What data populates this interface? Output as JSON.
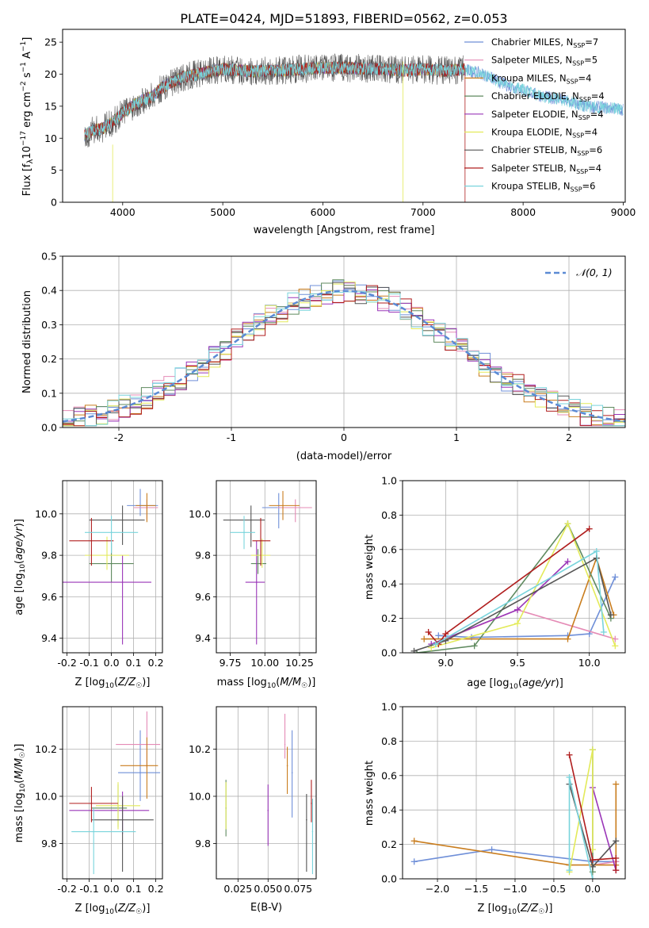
{
  "figure": {
    "title": "PLATE=0424, MJD=51893, FIBERID=0562, z=0.053"
  },
  "colors": {
    "Chabrier MILES": "#6f8fd8",
    "Salpeter MILES": "#e58bb6",
    "Kroupa MILES": "#c97d1e",
    "Chabrier ELODIE": "#5f8a5f",
    "Salpeter ELODIE": "#9a36b8",
    "Kroupa ELODIE": "#e3ea5a",
    "Chabrier STELIB": "#555555",
    "Salpeter STELIB": "#b01e1e",
    "Kroupa STELIB": "#79d4dc"
  },
  "chart_data": [
    {
      "id": "spectrum",
      "type": "line",
      "xlabel": "wavelength [Angstrom, rest frame]",
      "ylabel": "Flux [f_λ 10^-17 erg cm^-2 s^-1 A^-1]",
      "xlim": [
        3400,
        9020
      ],
      "ylim": [
        0,
        27
      ],
      "xticks": [
        4000,
        5000,
        6000,
        7000,
        8000,
        9000
      ],
      "yticks": [
        0,
        5,
        10,
        15,
        20,
        25
      ],
      "grid": false,
      "legend_position": "right",
      "legend": [
        {
          "label": "Chabrier MILES",
          "nssp": "7"
        },
        {
          "label": "Salpeter MILES",
          "nssp": "5"
        },
        {
          "label": "Kroupa MILES",
          "nssp": "4"
        },
        {
          "label": "Chabrier ELODIE",
          "nssp": "4"
        },
        {
          "label": "Salpeter ELODIE",
          "nssp": "4"
        },
        {
          "label": "Kroupa ELODIE",
          "nssp": "4"
        },
        {
          "label": "Chabrier STELIB",
          "nssp": "6"
        },
        {
          "label": "Salpeter STELIB",
          "nssp": "4"
        },
        {
          "label": "Kroupa STELIB",
          "nssp": "6"
        }
      ],
      "continuum": {
        "wavelength": [
          3620,
          3700,
          3800,
          3900,
          4000,
          4100,
          4200,
          4300,
          4400,
          4500,
          4600,
          4800,
          5000,
          5200,
          5400,
          5600,
          5800,
          6000,
          6200,
          6400,
          6600,
          6800,
          7000,
          7200,
          7400,
          7600,
          7800,
          8000,
          8200,
          8400,
          8600,
          8800,
          9000
        ],
        "flux": [
          10.5,
          11.2,
          11.5,
          12.5,
          14.0,
          15.0,
          16.0,
          16.5,
          18.0,
          18.8,
          19.5,
          20.2,
          20.8,
          20.5,
          20.5,
          20.6,
          20.8,
          21.0,
          21.0,
          20.9,
          20.8,
          20.6,
          20.8,
          20.5,
          20.8,
          20.0,
          18.5,
          17.5,
          16.5,
          16.0,
          15.0,
          14.8,
          14.5
        ]
      }
    },
    {
      "id": "residuals",
      "type": "bar",
      "xlabel": "(data-model)/error",
      "ylabel": "Normed distribution",
      "xlim": [
        -2.5,
        2.5
      ],
      "ylim": [
        0,
        0.5
      ],
      "xticks": [
        -2,
        -1,
        0,
        1,
        2
      ],
      "yticks": [
        0.0,
        0.1,
        0.2,
        0.3,
        0.4,
        0.5
      ],
      "grid": true,
      "legend_position": "upper right",
      "legend_label": "𝒩(0, 1)",
      "bin_width": 0.1
    },
    {
      "id": "age_vs_Z",
      "type": "scatter",
      "xlabel": "Z [log10(Z/Z☉)]",
      "ylabel": "age [log10(age/yr)]",
      "xlim": [
        -0.22,
        0.23
      ],
      "ylim": [
        9.33,
        10.16
      ],
      "xticks": [
        -0.2,
        -0.1,
        0.0,
        0.1,
        0.2
      ],
      "yticks": [
        9.4,
        9.6,
        9.8,
        10.0
      ],
      "grid": true,
      "points": [
        {
          "series": "Chabrier MILES",
          "x": 0.13,
          "xerr": [
            0.06,
            0.08
          ],
          "y": 10.04,
          "yerr": [
            0.05,
            0.08
          ]
        },
        {
          "series": "Salpeter MILES",
          "x": 0.16,
          "xerr": [
            0.06,
            0.05
          ],
          "y": 10.03,
          "yerr": [
            0.06,
            0.04
          ]
        },
        {
          "series": "Kroupa MILES",
          "x": 0.16,
          "xerr": [
            0.05,
            0.04
          ],
          "y": 10.04,
          "yerr": [
            0.08,
            0.06
          ]
        },
        {
          "series": "Chabrier ELODIE",
          "x": 0.0,
          "xerr": [
            0.1,
            0.1
          ],
          "y": 9.76,
          "yerr": [
            0.09,
            0.1
          ]
        },
        {
          "series": "Salpeter ELODIE",
          "x": 0.05,
          "xerr": [
            0.27,
            0.13
          ],
          "y": 9.67,
          "yerr": [
            0.3,
            0.13
          ]
        },
        {
          "series": "Kroupa ELODIE",
          "x": -0.02,
          "xerr": [
            0.1,
            0.1
          ],
          "y": 9.8,
          "yerr": [
            0.07,
            0.09
          ]
        },
        {
          "series": "Chabrier STELIB",
          "x": 0.05,
          "xerr": [
            0.15,
            0.1
          ],
          "y": 9.97,
          "yerr": [
            0.12,
            0.07
          ]
        },
        {
          "series": "Salpeter STELIB",
          "x": -0.09,
          "xerr": [
            0.1,
            0.1
          ],
          "y": 9.87,
          "yerr": [
            0.12,
            0.11
          ]
        },
        {
          "series": "Kroupa STELIB",
          "x": 0.0,
          "xerr": [
            0.12,
            0.12
          ],
          "y": 9.91,
          "yerr": [
            0.1,
            0.08
          ]
        }
      ]
    },
    {
      "id": "age_vs_mass",
      "type": "scatter",
      "xlabel": "mass [log10(M/M☉)]",
      "ylabel": "",
      "xlim": [
        9.65,
        10.37
      ],
      "ylim": [
        9.33,
        10.16
      ],
      "xticks": [
        9.75,
        10.0,
        10.25
      ],
      "yticks": [
        9.4,
        9.6,
        9.8,
        10.0
      ],
      "grid": true,
      "points": [
        {
          "series": "Chabrier MILES",
          "x": 10.1,
          "xerr": [
            0.12,
            0.12
          ],
          "y": 10.03,
          "yerr": [
            0.1,
            0.07
          ]
        },
        {
          "series": "Salpeter MILES",
          "x": 10.22,
          "xerr": [
            0.13,
            0.12
          ],
          "y": 10.03,
          "yerr": [
            0.07,
            0.04
          ]
        },
        {
          "series": "Kroupa MILES",
          "x": 10.13,
          "xerr": [
            0.1,
            0.12
          ],
          "y": 10.04,
          "yerr": [
            0.07,
            0.07
          ]
        },
        {
          "series": "Chabrier ELODIE",
          "x": 9.95,
          "xerr": [
            0.05,
            0.06
          ],
          "y": 9.76,
          "yerr": [
            0.05,
            0.07
          ]
        },
        {
          "series": "Salpeter ELODIE",
          "x": 9.94,
          "xerr": [
            0.08,
            0.06
          ],
          "y": 9.67,
          "yerr": [
            0.3,
            0.2
          ]
        },
        {
          "series": "Kroupa ELODIE",
          "x": 9.98,
          "xerr": [
            0.08,
            0.06
          ],
          "y": 9.8,
          "yerr": [
            0.06,
            0.08
          ]
        },
        {
          "series": "Chabrier STELIB",
          "x": 9.9,
          "xerr": [
            0.2,
            0.1
          ],
          "y": 9.97,
          "yerr": [
            0.13,
            0.07
          ]
        },
        {
          "series": "Salpeter STELIB",
          "x": 9.97,
          "xerr": [
            0.06,
            0.07
          ],
          "y": 9.87,
          "yerr": [
            0.12,
            0.11
          ]
        },
        {
          "series": "Kroupa STELIB",
          "x": 9.85,
          "xerr": [
            0.1,
            0.08
          ],
          "y": 9.91,
          "yerr": [
            0.08,
            0.08
          ]
        }
      ]
    },
    {
      "id": "mass_weight_vs_age",
      "type": "line",
      "xlabel": "age [log10(age/yr)]",
      "ylabel": "mass weight",
      "xlim": [
        8.7,
        10.25
      ],
      "ylim": [
        0,
        1.0
      ],
      "xticks": [
        9.0,
        9.5,
        10.0
      ],
      "yticks": [
        0.0,
        0.2,
        0.4,
        0.6,
        0.8,
        1.0
      ],
      "grid": true,
      "series": [
        {
          "name": "Chabrier MILES",
          "x": [
            8.95,
            9.18,
            9.85,
            10.0,
            10.18
          ],
          "y": [
            0.1,
            0.09,
            0.1,
            0.11,
            0.44
          ]
        },
        {
          "name": "Salpeter MILES",
          "x": [
            9.0,
            9.5,
            10.18
          ],
          "y": [
            0.08,
            0.25,
            0.08
          ]
        },
        {
          "name": "Kroupa MILES",
          "x": [
            8.85,
            9.85,
            10.05,
            10.17
          ],
          "y": [
            0.08,
            0.08,
            0.55,
            0.22
          ]
        },
        {
          "name": "Chabrier ELODIE",
          "x": [
            8.8,
            9.2,
            9.85,
            10.15
          ],
          "y": [
            0.0,
            0.04,
            0.75,
            0.2
          ]
        },
        {
          "name": "Salpeter ELODIE",
          "x": [
            8.9,
            9.5,
            9.85
          ],
          "y": [
            0.05,
            0.25,
            0.53
          ]
        },
        {
          "name": "Kroupa ELODIE",
          "x": [
            8.9,
            9.5,
            9.85,
            10.18
          ],
          "y": [
            0.03,
            0.17,
            0.75,
            0.04
          ]
        },
        {
          "name": "Chabrier STELIB",
          "x": [
            8.78,
            9.0,
            10.05,
            10.15
          ],
          "y": [
            0.01,
            0.07,
            0.55,
            0.22
          ]
        },
        {
          "name": "Salpeter STELIB",
          "x": [
            8.88,
            8.95,
            9.0,
            10.0
          ],
          "y": [
            0.12,
            0.05,
            0.11,
            0.72
          ]
        },
        {
          "name": "Kroupa STELIB",
          "x": [
            8.93,
            10.05,
            10.1
          ],
          "y": [
            0.05,
            0.59,
            0.12
          ]
        }
      ]
    },
    {
      "id": "mass_vs_Z",
      "type": "scatter",
      "xlabel": "Z [log10(Z/Z☉)]",
      "ylabel": "mass [log10(M/M☉)]",
      "xlim": [
        -0.22,
        0.23
      ],
      "ylim": [
        9.65,
        10.38
      ],
      "xticks": [
        -0.2,
        -0.1,
        0.0,
        0.1,
        0.2
      ],
      "yticks": [
        9.8,
        10.0,
        10.2
      ],
      "grid": true,
      "points": [
        {
          "series": "Chabrier MILES",
          "x": 0.13,
          "xerr": [
            0.1,
            0.09
          ],
          "y": 10.1,
          "yerr": [
            0.12,
            0.18
          ]
        },
        {
          "series": "Salpeter MILES",
          "x": 0.16,
          "xerr": [
            0.14,
            0.06
          ],
          "y": 10.22,
          "yerr": [
            0.1,
            0.14
          ]
        },
        {
          "series": "Kroupa MILES",
          "x": 0.16,
          "xerr": [
            0.12,
            0.05
          ],
          "y": 10.13,
          "yerr": [
            0.14,
            0.12
          ]
        },
        {
          "series": "Chabrier ELODIE",
          "x": 0.03,
          "xerr": [
            0.12,
            0.04
          ],
          "y": 9.95,
          "yerr": [
            0.08,
            0.1
          ]
        },
        {
          "series": "Salpeter ELODIE",
          "x": 0.05,
          "xerr": [
            0.24,
            0.12
          ],
          "y": 9.94,
          "yerr": [
            0.1,
            0.08
          ]
        },
        {
          "series": "Kroupa ELODIE",
          "x": 0.03,
          "xerr": [
            0.1,
            0.1
          ],
          "y": 9.96,
          "yerr": [
            0.1,
            0.1
          ]
        },
        {
          "series": "Chabrier STELIB",
          "x": 0.05,
          "xerr": [
            0.14,
            0.14
          ],
          "y": 9.9,
          "yerr": [
            0.22,
            0.1
          ]
        },
        {
          "series": "Salpeter STELIB",
          "x": -0.09,
          "xerr": [
            0.1,
            0.12
          ],
          "y": 9.97,
          "yerr": [
            0.08,
            0.07
          ]
        },
        {
          "series": "Kroupa STELIB",
          "x": -0.08,
          "xerr": [
            0.1,
            0.19
          ],
          "y": 9.85,
          "yerr": [
            0.18,
            0.1
          ]
        }
      ]
    },
    {
      "id": "mass_vs_ebv",
      "type": "scatter",
      "xlabel": "E(B-V)",
      "ylabel": "",
      "xlim": [
        0.007,
        0.09
      ],
      "ylim": [
        9.65,
        10.38
      ],
      "xticks": [
        0.025,
        0.05,
        0.075
      ],
      "yticks": [
        9.8,
        10.0,
        10.2
      ],
      "grid": true,
      "points": [
        {
          "series": "Chabrier MILES",
          "x": 0.07,
          "y": 10.1,
          "yerr": [
            0.19,
            0.18
          ]
        },
        {
          "series": "Salpeter MILES",
          "x": 0.064,
          "y": 10.22,
          "yerr": [
            0.06,
            0.13
          ]
        },
        {
          "series": "Kroupa MILES",
          "x": 0.066,
          "y": 10.13,
          "yerr": [
            0.12,
            0.08
          ]
        },
        {
          "series": "Chabrier ELODIE",
          "x": 0.015,
          "y": 9.95,
          "yerr": [
            0.12,
            0.12
          ]
        },
        {
          "series": "Salpeter ELODIE",
          "x": 0.05,
          "y": 9.94,
          "yerr": [
            0.15,
            0.11
          ]
        },
        {
          "series": "Kroupa ELODIE",
          "x": 0.015,
          "y": 9.96,
          "yerr": [
            0.1,
            0.1
          ]
        },
        {
          "series": "Chabrier STELIB",
          "x": 0.082,
          "y": 9.9,
          "yerr": [
            0.22,
            0.11
          ]
        },
        {
          "series": "Salpeter STELIB",
          "x": 0.086,
          "y": 9.97,
          "yerr": [
            0.08,
            0.1
          ]
        },
        {
          "series": "Kroupa STELIB",
          "x": 0.087,
          "y": 9.85,
          "yerr": [
            0.18,
            0.14
          ]
        }
      ]
    },
    {
      "id": "mass_weight_vs_Z",
      "type": "line",
      "xlabel": "Z [log10(Z/Z☉)]",
      "ylabel": "mass weight",
      "xlim": [
        -2.45,
        0.42
      ],
      "ylim": [
        0,
        1.0
      ],
      "xticks": [
        -2.0,
        -1.5,
        -1.0,
        -0.5,
        0.0
      ],
      "yticks": [
        0.0,
        0.2,
        0.4,
        0.6,
        0.8,
        1.0
      ],
      "grid": true,
      "series": [
        {
          "name": "Chabrier MILES",
          "x": [
            -2.3,
            -1.3,
            0.0,
            0.3
          ],
          "y": [
            0.1,
            0.17,
            0.1,
            0.1
          ]
        },
        {
          "name": "Salpeter MILES",
          "x": [
            0.0,
            0.3
          ],
          "y": [
            0.08,
            0.1
          ]
        },
        {
          "name": "Kroupa MILES",
          "x": [
            -2.3,
            -0.3,
            0.3,
            0.3
          ],
          "y": [
            0.22,
            0.08,
            0.08,
            0.55
          ]
        },
        {
          "name": "Chabrier ELODIE",
          "x": [
            0.0,
            0.0
          ],
          "y": [
            0.04,
            0.75
          ]
        },
        {
          "name": "Salpeter ELODIE",
          "x": [
            0.0,
            0.3
          ],
          "y": [
            0.53,
            0.05
          ]
        },
        {
          "name": "Kroupa ELODIE",
          "x": [
            -0.3,
            0.0,
            0.0
          ],
          "y": [
            0.04,
            0.75,
            0.17
          ]
        },
        {
          "name": "Chabrier STELIB",
          "x": [
            -0.3,
            0.0,
            0.3
          ],
          "y": [
            0.55,
            0.07,
            0.22
          ]
        },
        {
          "name": "Salpeter STELIB",
          "x": [
            -0.3,
            0.0,
            0.3,
            0.3
          ],
          "y": [
            0.72,
            0.11,
            0.12,
            0.05
          ]
        },
        {
          "name": "Kroupa STELIB",
          "x": [
            -0.3,
            -0.3,
            0.0
          ],
          "y": [
            0.05,
            0.59,
            0.0
          ]
        }
      ]
    }
  ]
}
